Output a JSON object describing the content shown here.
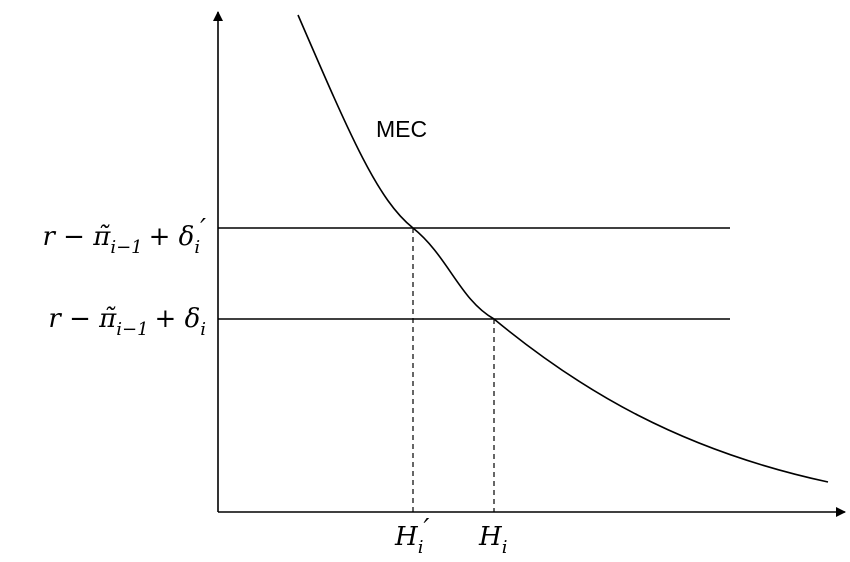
{
  "curve_label": "MEC",
  "y_labels": [
    {
      "base": "r − π̃",
      "sub": "i−1",
      "plus": "+ δ",
      "sub2": "i",
      "prime": "′"
    },
    {
      "base": "r − π̃",
      "sub": "i−1",
      "plus": "+ δ",
      "sub2": "i"
    }
  ],
  "x_labels": [
    {
      "base": "H",
      "sub": "i",
      "prime": "′"
    },
    {
      "base": "H",
      "sub": "i"
    }
  ]
}
